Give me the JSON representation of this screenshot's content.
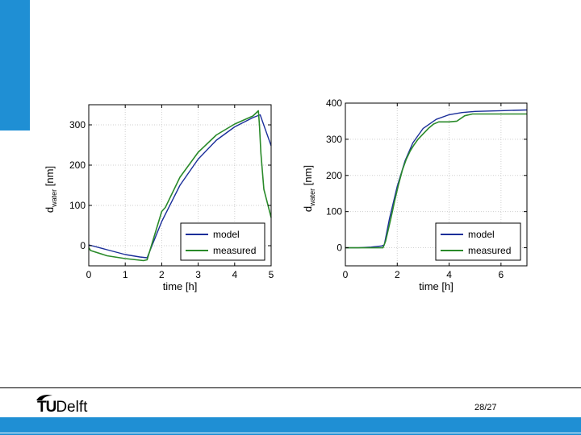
{
  "colors": {
    "accent": "#1f8fd4",
    "model": "#1a2e99",
    "measured": "#2a8a2a",
    "band": "#1f8fd4"
  },
  "footer": {
    "logo_tu": "TU",
    "logo_delft": "Delft",
    "page_number": "28/27"
  },
  "chart_data": [
    {
      "type": "line",
      "xlabel": "time [h]",
      "ylabel_main": "d",
      "ylabel_sub": "water",
      "ylabel_unit": " [nm]",
      "xlim": [
        0,
        5
      ],
      "ylim": [
        -50,
        350
      ],
      "xticks": [
        0,
        1,
        2,
        3,
        4,
        5
      ],
      "yticks": [
        0,
        100,
        200,
        300
      ],
      "legend": [
        "model",
        "measured"
      ],
      "legend_position": "bottom-right",
      "series": [
        {
          "name": "model",
          "x": [
            0,
            0.5,
            1,
            1.4,
            1.6,
            2.0,
            2.5,
            3.0,
            3.5,
            4.0,
            4.5,
            4.7,
            5.0
          ],
          "y": [
            2,
            -10,
            -22,
            -28,
            -30,
            60,
            150,
            215,
            262,
            295,
            318,
            325,
            248
          ]
        },
        {
          "name": "measured",
          "x": [
            0,
            0.05,
            0.5,
            1.0,
            1.5,
            1.6,
            1.9,
            2.0,
            2.1,
            2.5,
            3.0,
            3.5,
            4.0,
            4.5,
            4.65,
            4.68,
            4.72,
            4.8,
            5.0
          ],
          "y": [
            -5,
            -12,
            -25,
            -32,
            -37,
            -35,
            55,
            85,
            95,
            170,
            232,
            275,
            302,
            322,
            335,
            300,
            230,
            140,
            70
          ]
        }
      ]
    },
    {
      "type": "line",
      "xlabel": "time [h]",
      "ylabel_main": "d",
      "ylabel_sub": "water",
      "ylabel_unit": " [nm]",
      "xlim": [
        0,
        7
      ],
      "ylim": [
        -50,
        400
      ],
      "xticks": [
        0,
        2,
        4,
        6
      ],
      "yticks": [
        0,
        100,
        200,
        300,
        400
      ],
      "legend": [
        "model",
        "measured"
      ],
      "legend_position": "bottom-right",
      "series": [
        {
          "name": "model",
          "x": [
            0,
            0.5,
            1.0,
            1.4,
            1.5,
            1.7,
            2.0,
            2.3,
            2.6,
            3.0,
            3.5,
            4.0,
            4.5,
            5.0,
            6.0,
            7.0
          ],
          "y": [
            0,
            0,
            2,
            5,
            8,
            80,
            170,
            240,
            290,
            330,
            355,
            368,
            374,
            377,
            379,
            381
          ]
        },
        {
          "name": "measured",
          "x": [
            0,
            1.0,
            1.45,
            1.55,
            1.75,
            1.9,
            2.05,
            2.2,
            2.35,
            2.5,
            2.65,
            2.8,
            3.0,
            3.2,
            3.4,
            3.6,
            3.8,
            4.0,
            4.3,
            4.6,
            4.9,
            5.5,
            6.0,
            7.0
          ],
          "y": [
            0,
            0,
            0,
            18,
            80,
            130,
            175,
            215,
            245,
            268,
            285,
            300,
            315,
            330,
            342,
            348,
            348,
            348,
            350,
            365,
            370,
            370,
            370,
            370
          ]
        }
      ]
    }
  ]
}
